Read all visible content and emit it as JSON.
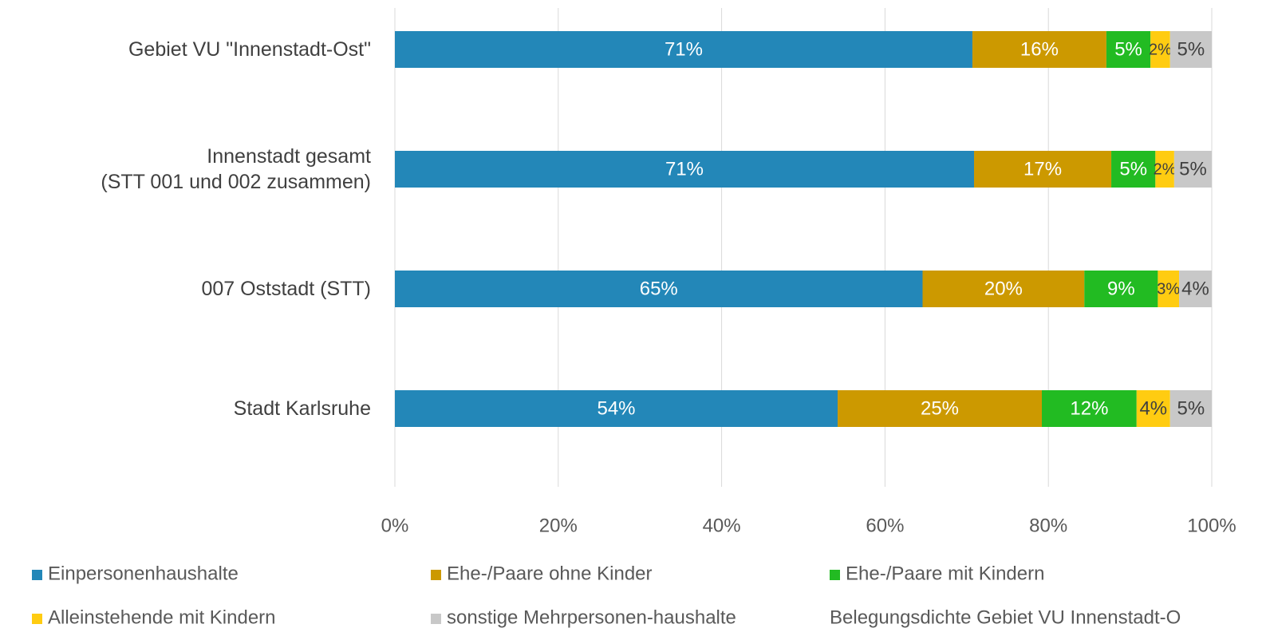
{
  "chart_data": {
    "type": "stacked_barh",
    "categories": [
      "Gebiet VU \"Innenstadt-Ost\"",
      "Innenstadt gesamt\n(STT 001 und 002 zusammen)",
      "007 Oststadt (STT)",
      "Stadt Karlsruhe"
    ],
    "series": [
      {
        "name": "Einpersonenhaushalte",
        "color": "#2387b8",
        "values": [
          70.7,
          70.9,
          64.6,
          54.2
        ],
        "value_labels": [
          "71%",
          "71%",
          "65%",
          "54%"
        ]
      },
      {
        "name": "Ehe-/Paare ohne Kinder",
        "color": "#cc9900",
        "values": [
          16.4,
          16.8,
          19.8,
          25.0
        ],
        "value_labels": [
          "16%",
          "17%",
          "20%",
          "25%"
        ]
      },
      {
        "name": "Ehe-/Paare mit Kindern",
        "color": "#22bb22",
        "values": [
          5.4,
          5.4,
          9.0,
          11.6
        ],
        "value_labels": [
          "5%",
          "5%",
          "9%",
          "12%"
        ]
      },
      {
        "name": "Alleinstehende mit Kindern",
        "color": "#ffcc11",
        "values": [
          2.4,
          2.3,
          2.6,
          4.1
        ],
        "value_labels": [
          "2%",
          "2%",
          "3%",
          "4%"
        ]
      },
      {
        "name": "sonstige Mehrpersonen-haushalte",
        "color": "#c8c8c8",
        "values": [
          5.1,
          4.6,
          4.0,
          5.1
        ],
        "value_labels": [
          "5%",
          "5%",
          "4%",
          "5%"
        ]
      }
    ],
    "xlim": [
      0,
      100
    ],
    "xticks": [
      {
        "value": 0,
        "label": "0%"
      },
      {
        "value": 20,
        "label": "20%"
      },
      {
        "value": 40,
        "label": "40%"
      },
      {
        "value": 60,
        "label": "60%"
      },
      {
        "value": 80,
        "label": "80%"
      },
      {
        "value": 100,
        "label": "100%"
      }
    ],
    "grid": true,
    "legend": "bottom",
    "annotation": "Belegungsdichte Gebiet VU Innenstadt-O"
  }
}
